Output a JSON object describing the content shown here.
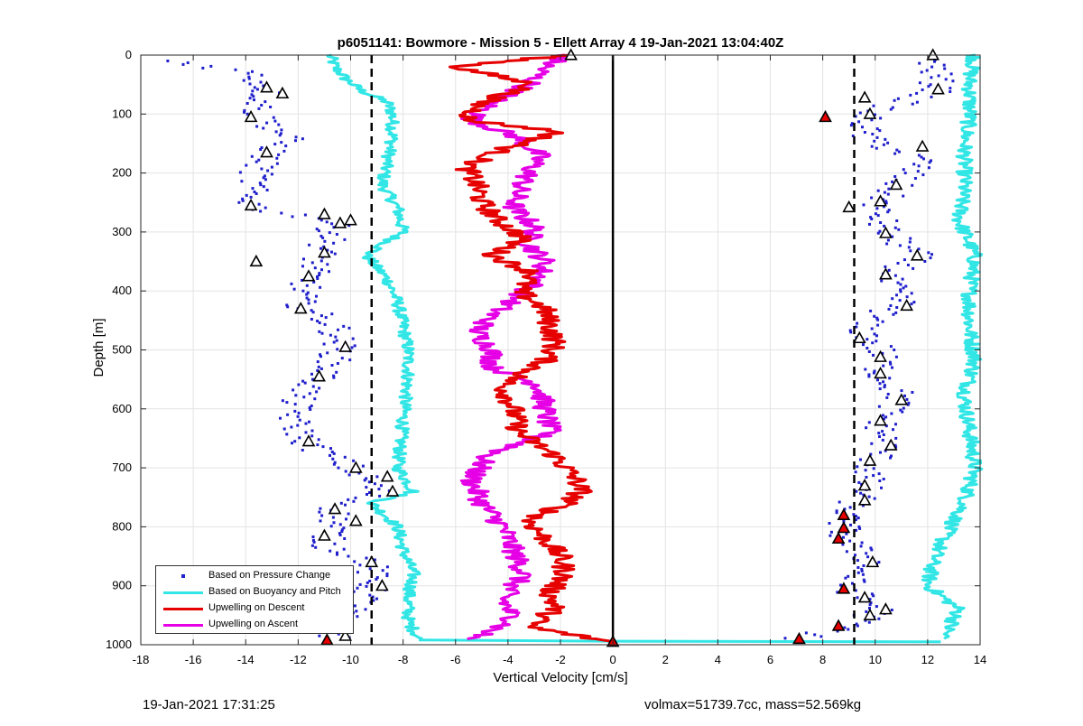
{
  "chart_data": {
    "type": "line",
    "title": "p6051141: Bowmore - Mission 5 - Ellett Array 4 19-Jan-2021 13:04:40Z",
    "xlabel": "Vertical Velocity [cm/s]",
    "ylabel": "Depth [m]",
    "xlim": [
      -18,
      14
    ],
    "ylim": [
      0,
      1000
    ],
    "y_reversed": true,
    "grid": true,
    "xticks": [
      -18,
      -16,
      -14,
      -12,
      -10,
      -8,
      -6,
      -4,
      -2,
      0,
      2,
      4,
      6,
      8,
      10,
      12,
      14
    ],
    "yticks": [
      0,
      100,
      200,
      300,
      400,
      500,
      600,
      700,
      800,
      900,
      1000
    ],
    "legend_position": "bottom-left",
    "reference_lines": {
      "dashed_x": [
        -9.2,
        9.2
      ],
      "solid_x": [
        0
      ]
    },
    "series": [
      {
        "name": "Based on Pressure Change",
        "style": "points",
        "color": "#1f1fcc",
        "left_branch": {
          "depth": [
            10,
            30,
            60,
            100,
            140,
            170,
            200,
            240,
            260,
            280,
            300,
            340,
            380,
            420,
            460,
            500,
            540,
            580,
            620,
            660,
            700,
            720,
            740,
            770,
            800,
            830,
            860,
            900,
            930,
            960,
            990
          ],
          "velocity": [
            -16.8,
            -13.8,
            -13.2,
            -13.6,
            -12.4,
            -13.2,
            -13.6,
            -13.9,
            -13.6,
            -10.8,
            -10.6,
            -11.2,
            -11.6,
            -12.0,
            -10.6,
            -10.4,
            -11.0,
            -12.0,
            -12.2,
            -11.6,
            -10.0,
            -9.4,
            -9.0,
            -10.6,
            -10.6,
            -11.0,
            -9.2,
            -9.2,
            -9.6,
            -10.6,
            -10.6
          ]
        },
        "right_branch": {
          "depth": [
            5,
            60,
            100,
            140,
            180,
            220,
            260,
            300,
            340,
            380,
            420,
            460,
            500,
            540,
            580,
            620,
            660,
            700,
            740,
            780,
            820,
            860,
            900,
            940,
            970,
            990
          ],
          "velocity": [
            12.2,
            12.4,
            9.6,
            9.6,
            11.8,
            10.8,
            10.0,
            10.4,
            11.6,
            10.4,
            11.0,
            9.4,
            10.2,
            10.2,
            11.0,
            10.2,
            10.4,
            9.8,
            9.6,
            8.8,
            8.8,
            9.9,
            8.8,
            10.2,
            9.0,
            7.0
          ]
        }
      },
      {
        "name": "Based on Buoyancy and Pitch",
        "style": "line",
        "color": "#33e6e6",
        "left_branch": {
          "depth": [
            0,
            20,
            40,
            60,
            80,
            100,
            140,
            180,
            220,
            260,
            300,
            340,
            380,
            420,
            460,
            500,
            540,
            580,
            620,
            660,
            700,
            740,
            760,
            800,
            840,
            880,
            920,
            960,
            990
          ],
          "velocity": [
            -10.8,
            -10.6,
            -10.2,
            -9.6,
            -8.6,
            -8.4,
            -8.4,
            -8.6,
            -8.8,
            -8.2,
            -8.0,
            -9.4,
            -8.6,
            -8.2,
            -8.0,
            -7.8,
            -7.8,
            -7.9,
            -8.0,
            -8.1,
            -8.2,
            -7.6,
            -9.2,
            -8.2,
            -8.0,
            -7.6,
            -7.8,
            -7.8,
            -7.4
          ]
        },
        "bottom_segment": {
          "depth": [
            992,
            994,
            995
          ],
          "velocity": [
            -7.4,
            0.0,
            12.5
          ]
        },
        "right_branch": {
          "depth": [
            0,
            40,
            100,
            160,
            220,
            280,
            340,
            400,
            460,
            520,
            580,
            640,
            700,
            760,
            820,
            860,
            900,
            940,
            990
          ],
          "velocity": [
            13.8,
            13.6,
            13.6,
            13.4,
            13.4,
            13.2,
            13.8,
            13.6,
            13.6,
            13.8,
            13.4,
            13.6,
            13.8,
            13.4,
            12.6,
            12.2,
            12.0,
            13.2,
            12.6
          ]
        }
      },
      {
        "name": "Upwelling on Descent",
        "style": "line",
        "color": "#e60000",
        "depth": [
          0,
          20,
          50,
          80,
          110,
          130,
          160,
          190,
          220,
          250,
          280,
          310,
          340,
          370,
          400,
          430,
          460,
          490,
          520,
          560,
          600,
          640,
          680,
          720,
          740,
          760,
          790,
          820,
          850,
          880,
          910,
          940,
          970,
          994
        ],
        "velocity": [
          -1.8,
          -6.0,
          -3.0,
          -5.0,
          -5.6,
          -2.0,
          -4.2,
          -5.6,
          -5.2,
          -5.0,
          -4.4,
          -3.4,
          -4.6,
          -3.0,
          -3.6,
          -2.6,
          -2.4,
          -2.2,
          -2.6,
          -4.2,
          -3.8,
          -3.6,
          -2.2,
          -1.4,
          -1.2,
          -1.8,
          -3.2,
          -2.6,
          -2.0,
          -1.8,
          -2.4,
          -2.2,
          -3.2,
          -0.2
        ]
      },
      {
        "name": "Upwelling on Ascent",
        "style": "line",
        "color": "#e600e6",
        "depth": [
          0,
          20,
          50,
          80,
          110,
          140,
          170,
          200,
          230,
          260,
          290,
          320,
          350,
          380,
          410,
          440,
          470,
          500,
          530,
          560,
          600,
          640,
          680,
          720,
          760,
          800,
          840,
          880,
          920,
          960,
          990
        ],
        "velocity": [
          -1.8,
          -2.6,
          -3.2,
          -4.6,
          -5.4,
          -3.6,
          -2.8,
          -3.2,
          -3.6,
          -3.8,
          -3.0,
          -3.2,
          -2.6,
          -2.8,
          -3.6,
          -4.6,
          -5.2,
          -4.6,
          -4.6,
          -2.8,
          -2.6,
          -2.4,
          -4.8,
          -5.4,
          -5.0,
          -4.2,
          -3.8,
          -3.4,
          -4.2,
          -3.8,
          -5.4
        ]
      }
    ],
    "markers": {
      "open_triangles": [
        {
          "velocity": -13.2,
          "depth": 55
        },
        {
          "velocity": -12.6,
          "depth": 65
        },
        {
          "velocity": -13.8,
          "depth": 105
        },
        {
          "velocity": -13.2,
          "depth": 165
        },
        {
          "velocity": -13.8,
          "depth": 255
        },
        {
          "velocity": -11.0,
          "depth": 270
        },
        {
          "velocity": -10.4,
          "depth": 285
        },
        {
          "velocity": -10.0,
          "depth": 280
        },
        {
          "velocity": -11.0,
          "depth": 335
        },
        {
          "velocity": -13.6,
          "depth": 350
        },
        {
          "velocity": -11.6,
          "depth": 375
        },
        {
          "velocity": -11.9,
          "depth": 430
        },
        {
          "velocity": -10.2,
          "depth": 495
        },
        {
          "velocity": -11.2,
          "depth": 545
        },
        {
          "velocity": -11.6,
          "depth": 655
        },
        {
          "velocity": -9.8,
          "depth": 700
        },
        {
          "velocity": -8.6,
          "depth": 715
        },
        {
          "velocity": -8.4,
          "depth": 740
        },
        {
          "velocity": -10.6,
          "depth": 770
        },
        {
          "velocity": -9.8,
          "depth": 790
        },
        {
          "velocity": -11.0,
          "depth": 815
        },
        {
          "velocity": -9.2,
          "depth": 860
        },
        {
          "velocity": -8.8,
          "depth": 900
        },
        {
          "velocity": -10.2,
          "depth": 985
        },
        {
          "velocity": 12.2,
          "depth": 0
        },
        {
          "velocity": 12.4,
          "depth": 58
        },
        {
          "velocity": 9.6,
          "depth": 72
        },
        {
          "velocity": 9.8,
          "depth": 100
        },
        {
          "velocity": 11.8,
          "depth": 155
        },
        {
          "velocity": 10.8,
          "depth": 220
        },
        {
          "velocity": 10.2,
          "depth": 248
        },
        {
          "velocity": 9.0,
          "depth": 258
        },
        {
          "velocity": 10.4,
          "depth": 302
        },
        {
          "velocity": 11.6,
          "depth": 340
        },
        {
          "velocity": 10.4,
          "depth": 372
        },
        {
          "velocity": 11.2,
          "depth": 425
        },
        {
          "velocity": 9.4,
          "depth": 480
        },
        {
          "velocity": 10.2,
          "depth": 512
        },
        {
          "velocity": 10.2,
          "depth": 540
        },
        {
          "velocity": 11.0,
          "depth": 585
        },
        {
          "velocity": 10.2,
          "depth": 620
        },
        {
          "velocity": 10.6,
          "depth": 662
        },
        {
          "velocity": 9.8,
          "depth": 688
        },
        {
          "velocity": 9.6,
          "depth": 730
        },
        {
          "velocity": 9.6,
          "depth": 755
        },
        {
          "velocity": 9.9,
          "depth": 860
        },
        {
          "velocity": 9.6,
          "depth": 920
        },
        {
          "velocity": 10.4,
          "depth": 940
        },
        {
          "velocity": 9.8,
          "depth": 950
        },
        {
          "velocity": -1.6,
          "depth": 0
        }
      ],
      "filled_triangles": [
        {
          "velocity": 8.1,
          "depth": 105
        },
        {
          "velocity": 8.8,
          "depth": 780
        },
        {
          "velocity": 8.8,
          "depth": 802
        },
        {
          "velocity": 8.6,
          "depth": 820
        },
        {
          "velocity": 8.8,
          "depth": 905
        },
        {
          "velocity": 8.6,
          "depth": 968
        },
        {
          "velocity": 7.1,
          "depth": 990
        },
        {
          "velocity": -10.9,
          "depth": 992
        },
        {
          "velocity": 0.0,
          "depth": 995
        }
      ]
    }
  },
  "legend": {
    "items": [
      {
        "label": "Based on Pressure Change",
        "color": "#1f1fcc",
        "kind": "dot"
      },
      {
        "label": "Based on Buoyancy and Pitch",
        "color": "#33e6e6",
        "kind": "line"
      },
      {
        "label": "Upwelling on Descent",
        "color": "#e60000",
        "kind": "line"
      },
      {
        "label": "Upwelling on Ascent",
        "color": "#e600e6",
        "kind": "line"
      }
    ]
  },
  "footer": {
    "timestamp": "19-Jan-2021 17:31:25",
    "info": "volmax=51739.7cc, mass=52.569kg"
  }
}
